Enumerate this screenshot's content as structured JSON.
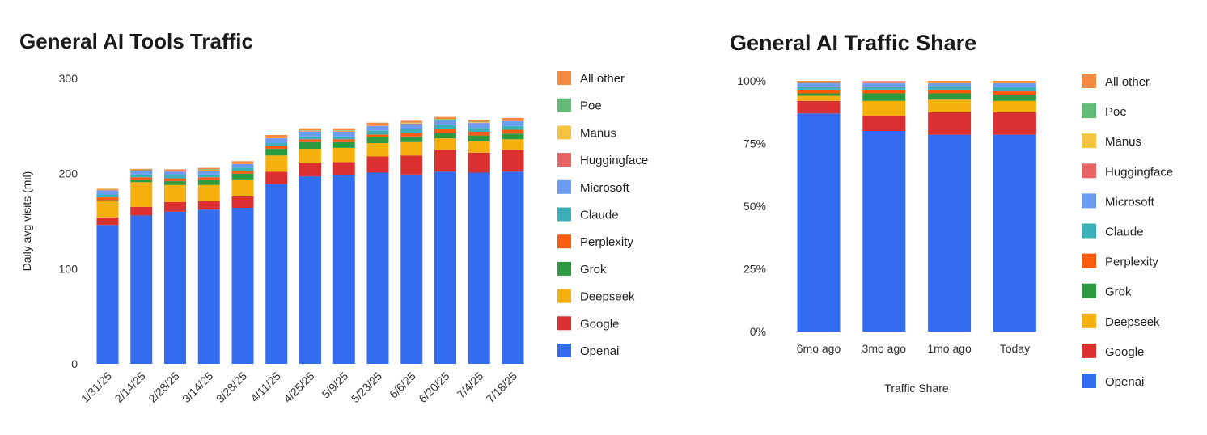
{
  "colors": {
    "Openai": "#346cf0",
    "Google": "#dc2f2f",
    "Deepseek": "#f5b00e",
    "Grok": "#2c9a40",
    "Perplexity": "#fa5b0f",
    "Claude": "#3bb0b8",
    "Microsoft": "#6b9cf2",
    "Huggingface": "#e86363",
    "Manus": "#f6c242",
    "Poe": "#62bb76",
    "All other": "#f58b42"
  },
  "chart_data": [
    {
      "type": "bar",
      "stacked": true,
      "title": "General AI Tools Traffic",
      "xlabel": "",
      "ylabel": "Daily avg visits (mil)",
      "ylim": [
        0,
        300
      ],
      "yticks": [
        "0",
        "100",
        "200",
        "300"
      ],
      "legend_position": "right",
      "categories": [
        "1/31/25",
        "2/14/25",
        "2/28/25",
        "3/14/25",
        "3/28/25",
        "4/11/25",
        "4/25/25",
        "5/9/25",
        "5/23/25",
        "6/6/25",
        "6/20/25",
        "7/4/25",
        "7/18/25"
      ],
      "series": [
        {
          "name": "Openai",
          "values": [
            146,
            156,
            160,
            162,
            164,
            189,
            197,
            198,
            201,
            199,
            202,
            201,
            202
          ]
        },
        {
          "name": "Google",
          "values": [
            8,
            9,
            10,
            9,
            12,
            13,
            14,
            14,
            17,
            20,
            23,
            21,
            23
          ]
        },
        {
          "name": "Deepseek",
          "values": [
            17,
            26,
            18,
            17,
            17,
            17,
            15,
            15,
            14,
            14,
            12,
            12,
            11
          ]
        },
        {
          "name": "Grok",
          "values": [
            1,
            2,
            4,
            5,
            7,
            7,
            7,
            6,
            6,
            6,
            6,
            6,
            6
          ]
        },
        {
          "name": "Perplexity",
          "values": [
            3,
            3,
            3,
            3,
            3,
            3,
            3,
            3,
            3,
            4,
            4,
            4,
            4
          ]
        },
        {
          "name": "Claude",
          "values": [
            3,
            3,
            3,
            3,
            3,
            3,
            3,
            3,
            4,
            4,
            4,
            4,
            4
          ]
        },
        {
          "name": "Microsoft",
          "values": [
            4,
            4,
            4,
            4,
            4,
            5,
            5,
            5,
            5,
            5,
            5,
            5,
            5
          ]
        },
        {
          "name": "Huggingface",
          "values": [
            0.5,
            0.5,
            0.5,
            0.5,
            0.5,
            0.5,
            0.5,
            0.5,
            0.5,
            0.5,
            0.5,
            0.5,
            0.5
          ]
        },
        {
          "name": "Manus",
          "values": [
            0,
            0,
            0,
            0.5,
            0.5,
            0.5,
            0.5,
            0.5,
            0.5,
            0.5,
            0.5,
            0.5,
            0.5
          ]
        },
        {
          "name": "Poe",
          "values": [
            0.5,
            0.5,
            0.5,
            0.5,
            0.5,
            0.5,
            0.5,
            0.5,
            0.5,
            0.5,
            0.5,
            0.5,
            0.5
          ]
        },
        {
          "name": "All other",
          "values": [
            1,
            1,
            1.5,
            1.5,
            1.5,
            2,
            2,
            2,
            2,
            2,
            2,
            2,
            2
          ]
        }
      ]
    },
    {
      "type": "bar",
      "stacked": true,
      "percent": true,
      "title": "General AI Traffic Share",
      "xlabel": "Traffic Share",
      "ylabel": "",
      "ylim": [
        0,
        100
      ],
      "yticks": [
        "0%",
        "25%",
        "50%",
        "75%",
        "100%"
      ],
      "legend_position": "right",
      "categories": [
        "6mo ago",
        "3mo ago",
        "1mo ago",
        "Today"
      ],
      "series": [
        {
          "name": "Openai",
          "values": [
            87,
            80,
            78.5,
            78.5
          ]
        },
        {
          "name": "Google",
          "values": [
            5,
            6,
            9,
            9
          ]
        },
        {
          "name": "Deepseek",
          "values": [
            2,
            6,
            5,
            4.5
          ]
        },
        {
          "name": "Grok",
          "values": [
            1,
            3,
            2.5,
            2.5
          ]
        },
        {
          "name": "Perplexity",
          "values": [
            1.5,
            1.5,
            1.5,
            1.5
          ]
        },
        {
          "name": "Claude",
          "values": [
            1,
            1,
            1.5,
            1.5
          ]
        },
        {
          "name": "Microsoft",
          "values": [
            1.5,
            1.5,
            1,
            1.5
          ]
        },
        {
          "name": "Huggingface",
          "values": [
            0.2,
            0.2,
            0.2,
            0.2
          ]
        },
        {
          "name": "Manus",
          "values": [
            0,
            0.1,
            0.2,
            0.2
          ]
        },
        {
          "name": "Poe",
          "values": [
            0.3,
            0.2,
            0.2,
            0.2
          ]
        },
        {
          "name": "All other",
          "values": [
            0.5,
            0.4,
            0.4,
            0.4
          ]
        }
      ]
    }
  ]
}
